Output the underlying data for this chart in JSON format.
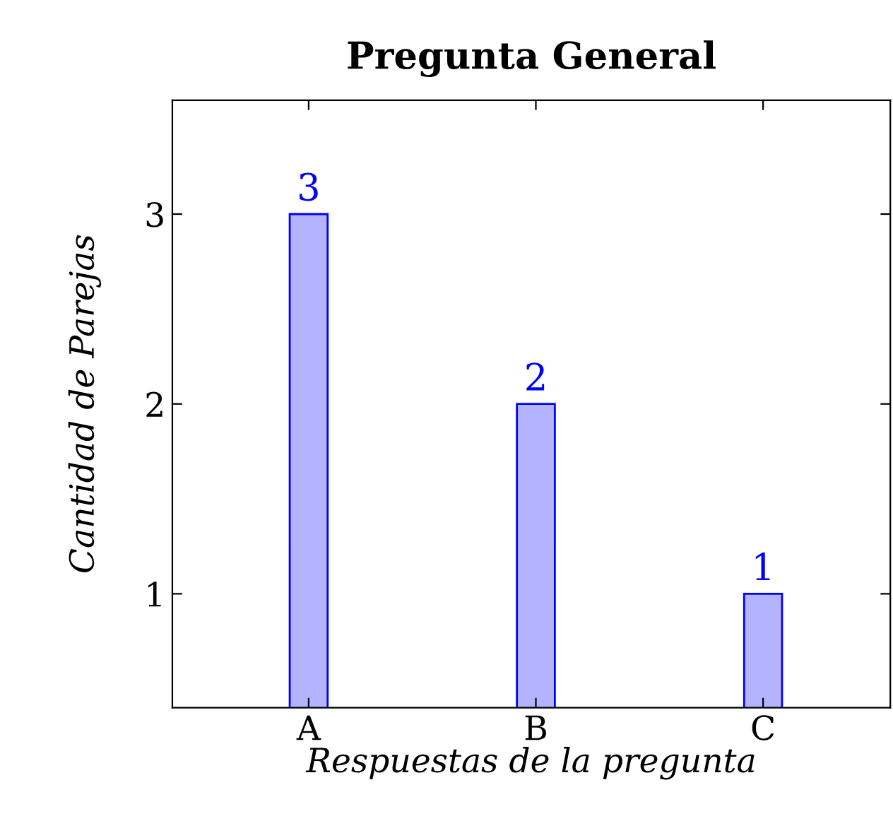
{
  "chart_data": {
    "type": "bar",
    "title": "Pregunta General",
    "xlabel": "Respuestas de la pregunta",
    "ylabel": "Cantidad de Parejas",
    "categories": [
      "A",
      "B",
      "C"
    ],
    "values": [
      3,
      2,
      1
    ],
    "color": "#b3b3ff",
    "ylim": [
      0.4,
      3.6
    ],
    "yticks": [
      1,
      2,
      3
    ],
    "data_labels": true,
    "grid": false,
    "legend": false
  }
}
